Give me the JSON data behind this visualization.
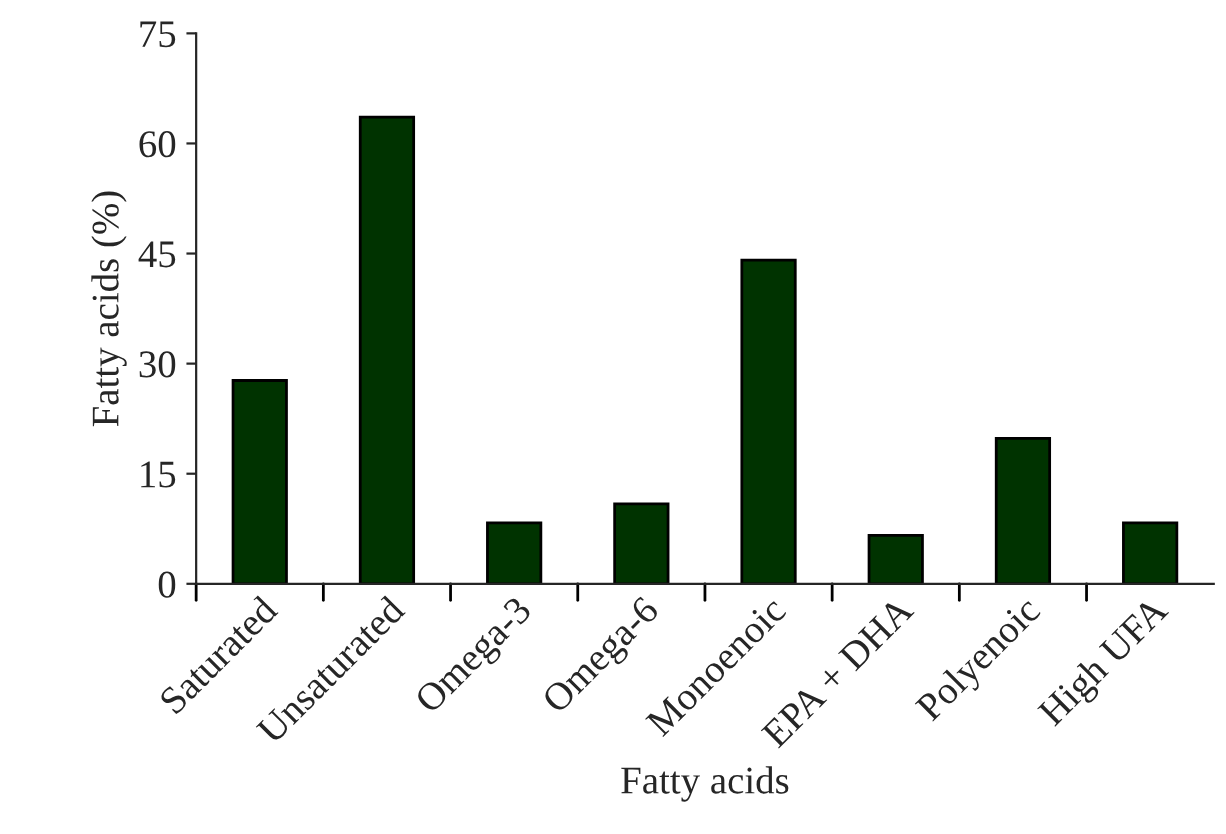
{
  "chart_data": {
    "type": "bar",
    "xlabel": "Fatty acids",
    "ylabel": "Fatty acids (%)",
    "categories": [
      "Saturated",
      "Unsaturated",
      "Omega-3",
      "Omega-6",
      "Monoenoic",
      "EPA + DHA",
      "Polyenoic",
      "High UFA"
    ],
    "values": [
      27.7,
      63.6,
      8.3,
      10.9,
      44.1,
      6.6,
      19.8,
      8.3
    ],
    "color": "#003300",
    "ylim": [
      0,
      75
    ],
    "yticks": [
      0,
      15,
      30,
      45,
      60,
      75
    ],
    "grid": false
  }
}
